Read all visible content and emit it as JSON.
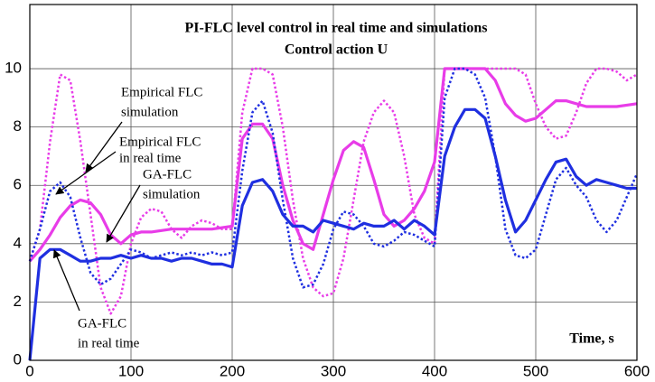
{
  "chart_data": {
    "type": "line",
    "title": [
      "PI-FLC level control in real time and simulations",
      "Control action U"
    ],
    "x_label": "Time, s",
    "x": [
      0,
      10,
      20,
      30,
      40,
      50,
      60,
      70,
      80,
      90,
      100,
      110,
      120,
      130,
      140,
      150,
      160,
      170,
      180,
      190,
      200,
      210,
      220,
      230,
      240,
      250,
      260,
      270,
      280,
      290,
      300,
      310,
      320,
      330,
      340,
      350,
      360,
      370,
      380,
      390,
      400,
      410,
      420,
      430,
      440,
      450,
      460,
      470,
      480,
      490,
      500,
      510,
      520,
      530,
      540,
      550,
      560,
      570,
      580,
      590,
      600
    ],
    "series": [
      {
        "color": "#e83ce8",
        "style": "dotted",
        "values": [
          3.4,
          4.5,
          7.5,
          9.8,
          9.6,
          7.5,
          5.0,
          2.5,
          1.6,
          2.2,
          4.0,
          4.9,
          5.2,
          5.1,
          4.5,
          4.2,
          4.6,
          4.8,
          4.7,
          4.5,
          4.5,
          8.5,
          10,
          10,
          9.8,
          8.0,
          5.5,
          3.5,
          2.5,
          2.2,
          2.3,
          3.5,
          5.5,
          7.5,
          8.5,
          8.9,
          8.5,
          7.0,
          5.0,
          4.2,
          4.0,
          10,
          10,
          10,
          10,
          10,
          10,
          10,
          10,
          9.8,
          8.8,
          8.0,
          7.6,
          7.7,
          8.5,
          9.5,
          10,
          10,
          9.9,
          9.6,
          9.8
        ]
      },
      {
        "color": "#e83ce8",
        "style": "solid",
        "values": [
          3.4,
          3.8,
          4.3,
          4.9,
          5.3,
          5.5,
          5.4,
          5.0,
          4.3,
          4.0,
          4.3,
          4.4,
          4.4,
          4.45,
          4.5,
          4.5,
          4.5,
          4.5,
          4.5,
          4.55,
          4.6,
          7.6,
          8.1,
          8.1,
          7.6,
          6.0,
          4.8,
          4.0,
          3.8,
          5.0,
          6.2,
          7.2,
          7.5,
          7.3,
          6.2,
          5.0,
          4.6,
          4.8,
          5.2,
          5.8,
          6.8,
          10,
          10,
          10,
          10,
          10,
          9.6,
          8.8,
          8.4,
          8.2,
          8.3,
          8.6,
          8.9,
          8.9,
          8.8,
          8.7,
          8.7,
          8.7,
          8.7,
          8.75,
          8.8
        ]
      },
      {
        "color": "#1f2fe0",
        "style": "dotted",
        "values": [
          3.4,
          4.5,
          5.8,
          6.1,
          5.6,
          4.2,
          3.0,
          2.6,
          2.8,
          3.3,
          3.8,
          3.7,
          3.5,
          3.6,
          3.7,
          3.6,
          3.7,
          3.6,
          3.7,
          3.6,
          3.7,
          6.5,
          8.5,
          8.9,
          7.8,
          5.5,
          3.5,
          2.5,
          2.6,
          3.3,
          4.5,
          5.1,
          5.0,
          4.6,
          4.0,
          3.9,
          4.1,
          4.4,
          4.3,
          4.1,
          3.9,
          9.0,
          10,
          10,
          9.8,
          9.0,
          7.0,
          4.5,
          3.6,
          3.5,
          3.8,
          5.0,
          6.2,
          6.6,
          6.0,
          5.6,
          4.8,
          4.4,
          4.8,
          5.6,
          6.4
        ]
      },
      {
        "color": "#1f2fe0",
        "style": "solid",
        "values": [
          0,
          3.5,
          3.8,
          3.8,
          3.6,
          3.4,
          3.4,
          3.5,
          3.5,
          3.6,
          3.5,
          3.6,
          3.5,
          3.5,
          3.4,
          3.5,
          3.5,
          3.4,
          3.3,
          3.3,
          3.2,
          5.3,
          6.1,
          6.2,
          5.8,
          5.0,
          4.6,
          4.6,
          4.4,
          4.8,
          4.7,
          4.6,
          4.5,
          4.7,
          4.6,
          4.6,
          4.8,
          4.5,
          4.8,
          4.6,
          4.3,
          7.0,
          8.0,
          8.6,
          8.6,
          8.3,
          7.0,
          5.5,
          4.4,
          4.8,
          5.5,
          6.2,
          6.8,
          6.9,
          6.3,
          6.0,
          6.2,
          6.1,
          6.0,
          5.9,
          5.9
        ]
      }
    ],
    "annotations": [
      [
        "Empirical FLC",
        "simulation"
      ],
      [
        "Empirical FLC",
        "in real time"
      ],
      [
        "GA-FLC",
        "simulation"
      ],
      [
        "GA-FLC",
        "in real time"
      ]
    ],
    "xlim": [
      0,
      600
    ],
    "ylim": [
      0,
      12.2
    ],
    "xticks": [
      0,
      100,
      200,
      300,
      400,
      500,
      600
    ],
    "yticks": [
      0,
      2,
      4,
      6,
      8,
      10
    ],
    "grid": true
  }
}
